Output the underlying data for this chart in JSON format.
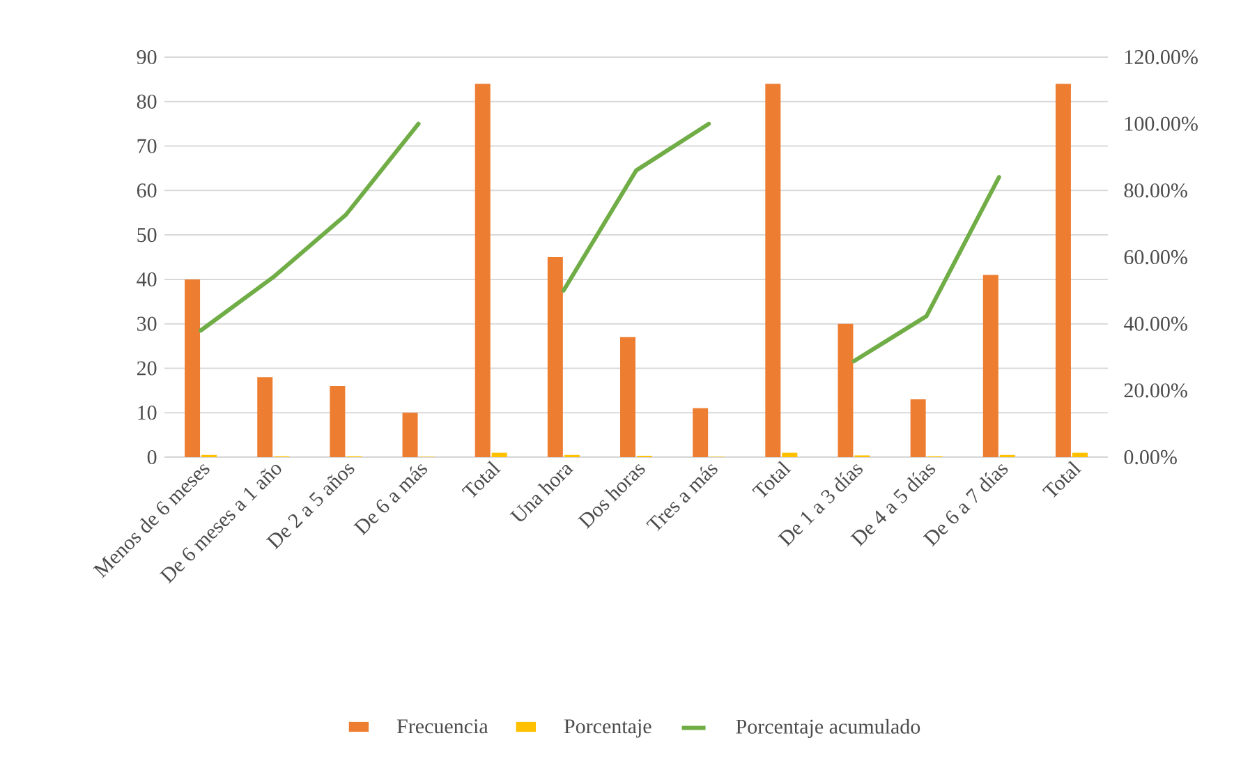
{
  "chart_data": {
    "type": "bar",
    "categories": [
      "Menos de 6 meses",
      "De 6 meses a 1 año",
      "De 2 a 5 años",
      "De 6 a más",
      "Total",
      "Una hora",
      "Dos horas",
      "Tres a más",
      "Total",
      "De 1 a 3 días",
      "De 4 a 5 días",
      "De 6 a 7 días",
      "Total"
    ],
    "series": [
      {
        "name": "Frecuencia",
        "color": "#ed7d31",
        "values": [
          40,
          18,
          16,
          10,
          84,
          45,
          27,
          11,
          84,
          30,
          13,
          41,
          84
        ]
      },
      {
        "name": "Porcentaje",
        "color": "#ffc000",
        "values": [
          0.5,
          0.2,
          0.2,
          0.1,
          1,
          0.5,
          0.3,
          0.1,
          1,
          0.4,
          0.2,
          0.5,
          1
        ]
      },
      {
        "name": "Porcentaje acumulado",
        "color": "#70ad47",
        "type": "line",
        "axis": "y2",
        "values": [
          38,
          54,
          72.7,
          100,
          null,
          50,
          86,
          100,
          null,
          28.8,
          42.3,
          84,
          null
        ]
      }
    ],
    "ylim": [
      0,
      90
    ],
    "yticks": [
      0,
      10,
      20,
      30,
      40,
      50,
      60,
      70,
      80,
      90
    ],
    "y2lim": [
      0,
      120
    ],
    "y2ticks": [
      {
        "value": 0,
        "label": "0.00%"
      },
      {
        "value": 20,
        "label": "20.00%"
      },
      {
        "value": 40,
        "label": "40.00%"
      },
      {
        "value": 60,
        "label": "60.00%"
      },
      {
        "value": 80,
        "label": "80.00%"
      },
      {
        "value": 100,
        "label": "100.00%"
      },
      {
        "value": 120,
        "label": "120.00%"
      }
    ],
    "grid": "y",
    "legend": "bottom",
    "marker": "none"
  }
}
